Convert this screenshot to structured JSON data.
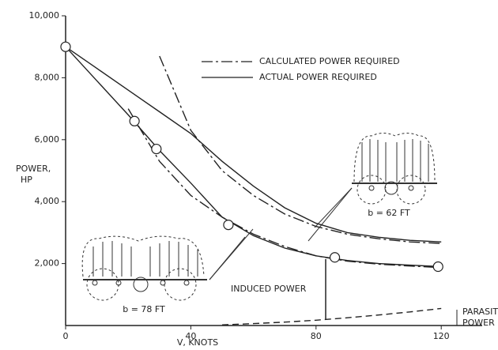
{
  "chart_data": {
    "type": "line",
    "x_label": "V, KNOTS",
    "y_label": [
      "POWER,",
      "HP"
    ],
    "x": [
      0,
      10,
      20,
      30,
      40,
      50,
      60,
      70,
      80,
      90,
      100,
      110,
      120
    ],
    "xlim": [
      0,
      125
    ],
    "ylim": [
      0,
      10000
    ],
    "xticks": [
      0,
      40,
      80,
      120
    ],
    "yticks": [
      {
        "value": 2000,
        "label": "2,000"
      },
      {
        "value": 4000,
        "label": "4,000"
      },
      {
        "value": 6000,
        "label": "6,000"
      },
      {
        "value": 8000,
        "label": "8,000"
      },
      {
        "value": 10000,
        "label": "10,000"
      }
    ],
    "color": "#222222",
    "legend": [
      {
        "label": "CALCULATED POWER REQUIRED",
        "style": "dashdot"
      },
      {
        "label": "ACTUAL POWER REQUIRED",
        "style": "solid"
      }
    ],
    "series": [
      {
        "style": "solid",
        "values": [
          9000,
          7900,
          6800,
          5650,
          4600,
          3500,
          2900,
          2500,
          2250,
          2100,
          2000,
          1950,
          1900
        ]
      },
      {
        "style": "solid",
        "values": [
          9000,
          8300,
          7600,
          6900,
          6200,
          5300,
          4500,
          3800,
          3300,
          3000,
          2850,
          2750,
          2700
        ]
      },
      {
        "style": "dashdot",
        "values": [
          null,
          null,
          7000,
          5300,
          4200,
          3500,
          2950,
          2550,
          2250,
          2080,
          1980,
          1920,
          1870
        ]
      },
      {
        "style": "dashdot",
        "values": [
          null,
          null,
          null,
          8700,
          6300,
          5000,
          4200,
          3600,
          3200,
          2950,
          2800,
          2700,
          2650
        ]
      },
      {
        "style": "dashed",
        "values": [
          null,
          null,
          null,
          null,
          null,
          20,
          60,
          110,
          170,
          250,
          340,
          440,
          550
        ]
      }
    ],
    "points": {
      "x": [
        0,
        22,
        29,
        52,
        86,
        119
      ],
      "values": [
        9000,
        6600,
        5700,
        3250,
        2200,
        1900
      ]
    },
    "annotations": [
      "b = 62 FT",
      "b = 78 FT",
      "INDUCED POWER",
      "PARASITE",
      "POWER"
    ]
  }
}
